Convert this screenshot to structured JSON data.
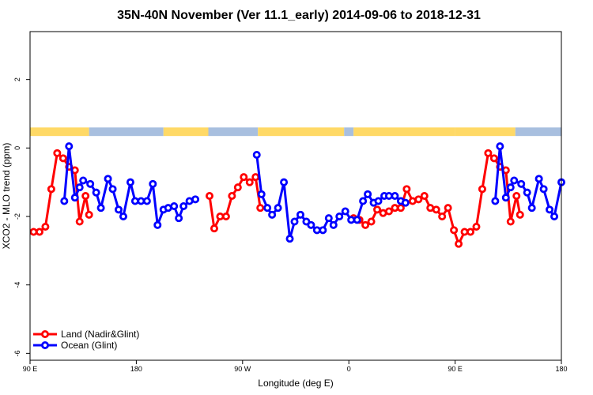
{
  "chart_data": {
    "type": "line",
    "title": "35N-40N November (Ver 11.1_early)   2014-09-06 to 2018-12-31",
    "xlabel": "Longitude (deg E)",
    "ylabel": "XCO2 - MLO trend (ppm)",
    "xlim": [
      90,
      540
    ],
    "ylim": [
      -6.2,
      3.4
    ],
    "x_ticks": [
      {
        "value": 90,
        "label": "90 E"
      },
      {
        "value": 180,
        "label": "180"
      },
      {
        "value": 270,
        "label": "90 W"
      },
      {
        "value": 360,
        "label": "0"
      },
      {
        "value": 450,
        "label": "90 E"
      },
      {
        "value": 540,
        "label": "180"
      }
    ],
    "y_ticks": [
      {
        "value": -6,
        "label": "-6"
      },
      {
        "value": -4,
        "label": "-4"
      },
      {
        "value": -2,
        "label": "-2"
      },
      {
        "value": 0,
        "label": "0"
      },
      {
        "value": 2,
        "label": "2"
      }
    ],
    "grid": false,
    "legend_position": "bottom-left",
    "land_mask_colors": {
      "land": "#FFD966",
      "ocean": "#A8BFDF"
    },
    "land_mask_segments": [
      {
        "from": 90,
        "to": 140,
        "type": "land"
      },
      {
        "from": 140,
        "to": 203,
        "type": "ocean"
      },
      {
        "from": 203,
        "to": 241,
        "type": "land"
      },
      {
        "from": 241,
        "to": 283,
        "type": "ocean"
      },
      {
        "from": 283,
        "to": 356,
        "type": "land"
      },
      {
        "from": 356,
        "to": 364,
        "type": "ocean"
      },
      {
        "from": 364,
        "to": 450,
        "type": "land"
      },
      {
        "from": 450,
        "to": 501,
        "type": "land"
      },
      {
        "from": 501,
        "to": 540,
        "type": "ocean"
      }
    ],
    "series": [
      {
        "name": "Land (Nadir&Glint)",
        "color": "#FF0000",
        "points": [
          [
            93,
            -2.45
          ],
          [
            98,
            -2.45
          ],
          [
            103,
            -2.3
          ],
          [
            108,
            -1.2
          ],
          [
            113,
            -0.15
          ],
          [
            118,
            -0.3
          ],
          [
            123,
            -0.55
          ],
          [
            128,
            -0.65
          ],
          [
            132,
            -2.15
          ],
          [
            137,
            -1.4
          ],
          [
            140,
            -1.95
          ],
          [
            242,
            -1.4
          ],
          [
            246,
            -2.35
          ],
          [
            251,
            -2.0
          ],
          [
            256,
            -2.0
          ],
          [
            261,
            -1.4
          ],
          [
            266,
            -1.15
          ],
          [
            271,
            -0.85
          ],
          [
            276,
            -1.0
          ],
          [
            281,
            -0.85
          ],
          [
            285,
            -1.75
          ],
          [
            364,
            -2.05
          ],
          [
            369,
            -2.1
          ],
          [
            374,
            -2.25
          ],
          [
            379,
            -2.15
          ],
          [
            384,
            -1.8
          ],
          [
            389,
            -1.9
          ],
          [
            394,
            -1.85
          ],
          [
            399,
            -1.75
          ],
          [
            404,
            -1.75
          ],
          [
            409,
            -1.2
          ],
          [
            414,
            -1.55
          ],
          [
            419,
            -1.5
          ],
          [
            424,
            -1.4
          ],
          [
            429,
            -1.75
          ],
          [
            434,
            -1.8
          ],
          [
            439,
            -2.0
          ],
          [
            444,
            -1.75
          ],
          [
            449,
            -2.4
          ],
          [
            453,
            -2.8
          ],
          [
            458,
            -2.45
          ],
          [
            463,
            -2.45
          ],
          [
            468,
            -2.3
          ],
          [
            473,
            -1.2
          ],
          [
            478,
            -0.15
          ],
          [
            483,
            -0.3
          ],
          [
            488,
            -0.55
          ],
          [
            493,
            -0.65
          ],
          [
            497,
            -2.15
          ],
          [
            502,
            -1.4
          ],
          [
            505,
            -1.95
          ]
        ]
      },
      {
        "name": "Ocean (Glint)",
        "color": "#0000FF",
        "points": [
          [
            119,
            -1.55
          ],
          [
            123,
            0.05
          ],
          [
            128,
            -1.45
          ],
          [
            132,
            -1.15
          ],
          [
            135,
            -0.95
          ],
          [
            141,
            -1.05
          ],
          [
            146,
            -1.3
          ],
          [
            150,
            -1.75
          ],
          [
            156,
            -0.9
          ],
          [
            160,
            -1.2
          ],
          [
            165,
            -1.8
          ],
          [
            169,
            -2.0
          ],
          [
            175,
            -1.0
          ],
          [
            179,
            -1.55
          ],
          [
            184,
            -1.55
          ],
          [
            189,
            -1.55
          ],
          [
            194,
            -1.05
          ],
          [
            198,
            -2.25
          ],
          [
            203,
            -1.8
          ],
          [
            207,
            -1.75
          ],
          [
            212,
            -1.7
          ],
          [
            216,
            -2.05
          ],
          [
            220,
            -1.7
          ],
          [
            225,
            -1.55
          ],
          [
            230,
            -1.5
          ],
          [
            282,
            -0.2
          ],
          [
            286,
            -1.35
          ],
          [
            291,
            -1.75
          ],
          [
            295,
            -1.95
          ],
          [
            300,
            -1.75
          ],
          [
            305,
            -1.0
          ],
          [
            310,
            -2.65
          ],
          [
            314,
            -2.15
          ],
          [
            319,
            -1.95
          ],
          [
            324,
            -2.15
          ],
          [
            328,
            -2.25
          ],
          [
            333,
            -2.4
          ],
          [
            338,
            -2.4
          ],
          [
            343,
            -2.05
          ],
          [
            347,
            -2.25
          ],
          [
            352,
            -2.0
          ],
          [
            357,
            -1.85
          ],
          [
            362,
            -2.1
          ],
          [
            367,
            -2.1
          ],
          [
            372,
            -1.55
          ],
          [
            376,
            -1.35
          ],
          [
            381,
            -1.6
          ],
          [
            385,
            -1.55
          ],
          [
            390,
            -1.4
          ],
          [
            394,
            -1.4
          ],
          [
            399,
            -1.4
          ],
          [
            404,
            -1.55
          ],
          [
            408,
            -1.6
          ],
          [
            484,
            -1.55
          ],
          [
            488,
            0.05
          ],
          [
            493,
            -1.45
          ],
          [
            497,
            -1.15
          ],
          [
            500,
            -0.95
          ],
          [
            506,
            -1.05
          ],
          [
            511,
            -1.3
          ],
          [
            515,
            -1.75
          ],
          [
            521,
            -0.9
          ],
          [
            525,
            -1.2
          ],
          [
            530,
            -1.8
          ],
          [
            534,
            -2.0
          ],
          [
            540,
            -1.0
          ]
        ]
      }
    ]
  }
}
